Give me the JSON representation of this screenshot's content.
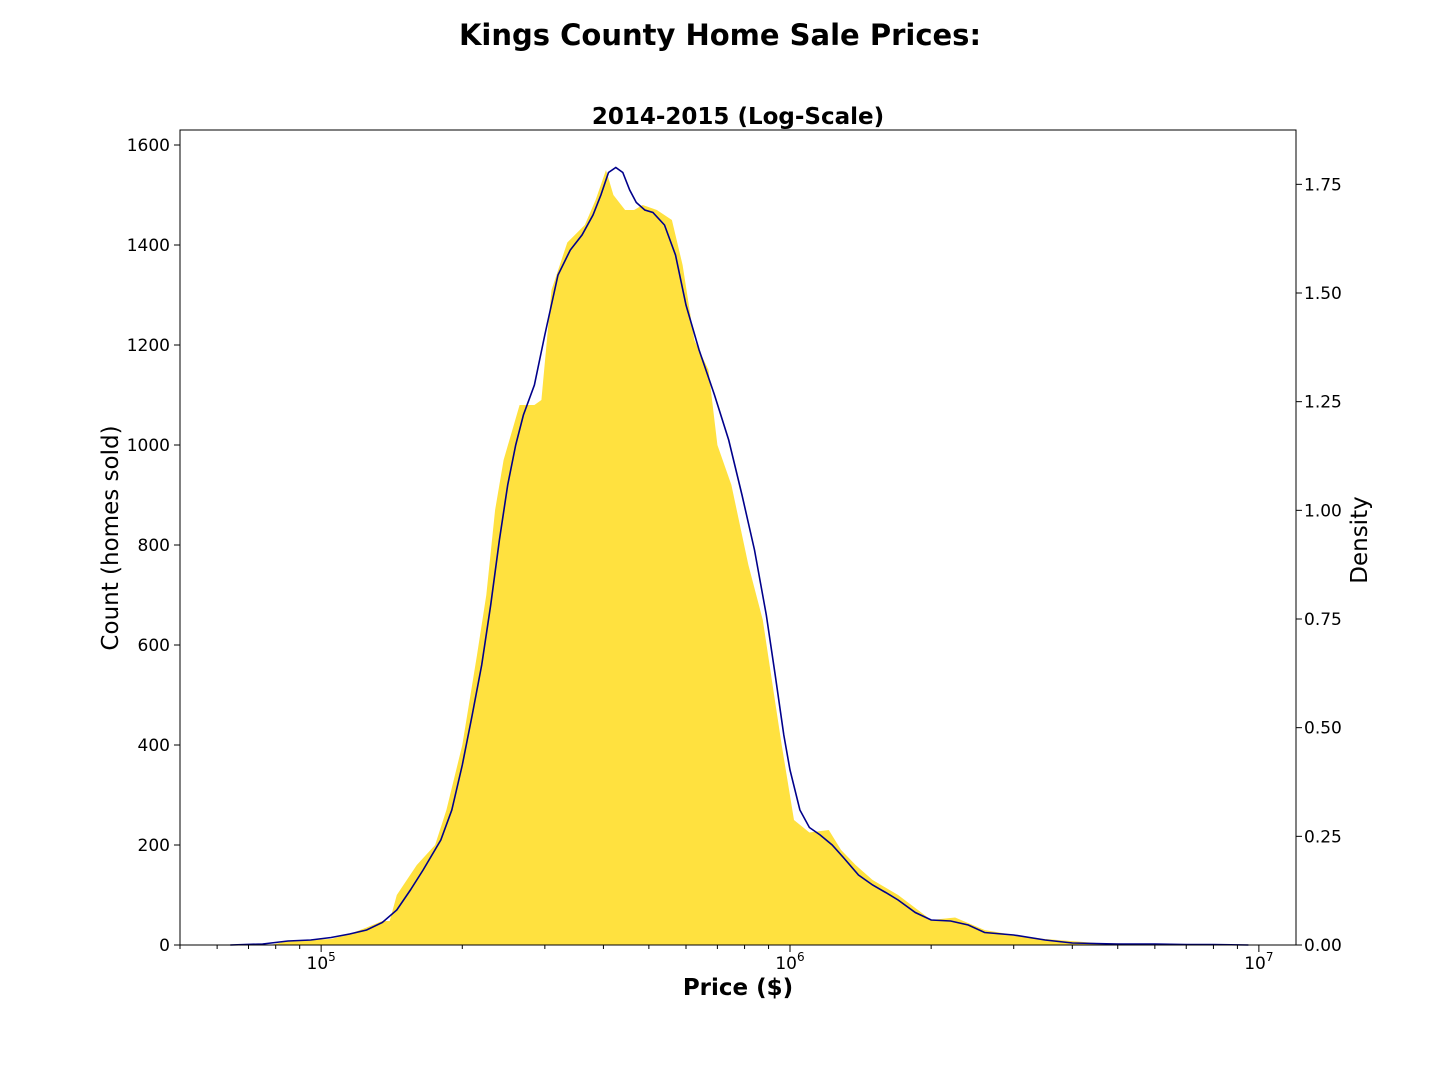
{
  "chart_data": {
    "type": "area",
    "suptitle": "Kings County Home Sale Prices:",
    "title": "2014-2015 (Log-Scale)",
    "xlabel": "Price ($)",
    "ylabel": "Count (homes sold)",
    "ylabel_right": "Density",
    "xscale": "log",
    "xlim": [
      50000,
      12000000
    ],
    "ylim": [
      0,
      1630
    ],
    "ylim_right": [
      0,
      1.875
    ],
    "x_ticks": [
      {
        "base": "10",
        "exp": "5",
        "value": 100000
      },
      {
        "base": "10",
        "exp": "6",
        "value": 1000000
      },
      {
        "base": "10",
        "exp": "7",
        "value": 10000000
      }
    ],
    "y_ticks": [
      0,
      200,
      400,
      600,
      800,
      1000,
      1200,
      1400,
      1600
    ],
    "y_ticks_right": [
      "0.00",
      "0.25",
      "0.50",
      "0.75",
      "1.00",
      "1.25",
      "1.50",
      "1.75"
    ],
    "y_ticks_right_values": [
      0,
      0.25,
      0.5,
      0.75,
      1.0,
      1.25,
      1.5,
      1.75
    ],
    "grid": false,
    "series": [
      {
        "kind": "histogram-area",
        "color": "#ffe13f",
        "points": [
          [
            78000,
            0
          ],
          [
            85000,
            8
          ],
          [
            95000,
            10
          ],
          [
            105000,
            12
          ],
          [
            115000,
            22
          ],
          [
            125000,
            35
          ],
          [
            135000,
            48
          ],
          [
            140000,
            48
          ],
          [
            145000,
            100
          ],
          [
            160000,
            160
          ],
          [
            175000,
            200
          ],
          [
            185000,
            270
          ],
          [
            200000,
            400
          ],
          [
            215000,
            580
          ],
          [
            225000,
            700
          ],
          [
            235000,
            870
          ],
          [
            245000,
            970
          ],
          [
            265000,
            1080
          ],
          [
            285000,
            1080
          ],
          [
            295000,
            1090
          ],
          [
            310000,
            1310
          ],
          [
            335000,
            1405
          ],
          [
            365000,
            1440
          ],
          [
            385000,
            1490
          ],
          [
            405000,
            1550
          ],
          [
            420000,
            1500
          ],
          [
            445000,
            1470
          ],
          [
            465000,
            1470
          ],
          [
            485000,
            1480
          ],
          [
            520000,
            1470
          ],
          [
            560000,
            1450
          ],
          [
            590000,
            1360
          ],
          [
            625000,
            1210
          ],
          [
            670000,
            1150
          ],
          [
            700000,
            1000
          ],
          [
            750000,
            920
          ],
          [
            815000,
            760
          ],
          [
            875000,
            650
          ],
          [
            925000,
            500
          ],
          [
            960000,
            400
          ],
          [
            1020000,
            250
          ],
          [
            1100000,
            225
          ],
          [
            1210000,
            230
          ],
          [
            1285000,
            190
          ],
          [
            1380000,
            160
          ],
          [
            1500000,
            130
          ],
          [
            1700000,
            100
          ],
          [
            2000000,
            50
          ],
          [
            2250000,
            55
          ],
          [
            2600000,
            30
          ],
          [
            3000000,
            20
          ],
          [
            3500000,
            12
          ],
          [
            4500000,
            4
          ],
          [
            6000000,
            2
          ],
          [
            8000000,
            1
          ],
          [
            9500000,
            0
          ]
        ]
      },
      {
        "kind": "kde-line",
        "color": "#00008b",
        "points": [
          [
            64000,
            0
          ],
          [
            75000,
            2
          ],
          [
            85000,
            8
          ],
          [
            95000,
            10
          ],
          [
            105000,
            15
          ],
          [
            115000,
            22
          ],
          [
            125000,
            30
          ],
          [
            135000,
            45
          ],
          [
            145000,
            70
          ],
          [
            155000,
            110
          ],
          [
            165000,
            150
          ],
          [
            180000,
            210
          ],
          [
            190000,
            270
          ],
          [
            200000,
            360
          ],
          [
            210000,
            460
          ],
          [
            220000,
            560
          ],
          [
            230000,
            680
          ],
          [
            240000,
            810
          ],
          [
            250000,
            920
          ],
          [
            260000,
            1000
          ],
          [
            270000,
            1060
          ],
          [
            285000,
            1120
          ],
          [
            300000,
            1220
          ],
          [
            320000,
            1340
          ],
          [
            340000,
            1390
          ],
          [
            360000,
            1420
          ],
          [
            380000,
            1460
          ],
          [
            395000,
            1500
          ],
          [
            410000,
            1545
          ],
          [
            425000,
            1555
          ],
          [
            440000,
            1545
          ],
          [
            455000,
            1510
          ],
          [
            470000,
            1485
          ],
          [
            490000,
            1470
          ],
          [
            510000,
            1465
          ],
          [
            540000,
            1440
          ],
          [
            570000,
            1380
          ],
          [
            600000,
            1280
          ],
          [
            640000,
            1190
          ],
          [
            690000,
            1100
          ],
          [
            740000,
            1010
          ],
          [
            790000,
            900
          ],
          [
            840000,
            790
          ],
          [
            890000,
            660
          ],
          [
            930000,
            540
          ],
          [
            970000,
            420
          ],
          [
            1000000,
            350
          ],
          [
            1050000,
            270
          ],
          [
            1100000,
            235
          ],
          [
            1160000,
            220
          ],
          [
            1230000,
            200
          ],
          [
            1300000,
            175
          ],
          [
            1400000,
            140
          ],
          [
            1500000,
            120
          ],
          [
            1600000,
            105
          ],
          [
            1700000,
            90
          ],
          [
            1850000,
            65
          ],
          [
            2000000,
            50
          ],
          [
            2200000,
            48
          ],
          [
            2400000,
            40
          ],
          [
            2600000,
            25
          ],
          [
            3000000,
            20
          ],
          [
            3500000,
            10
          ],
          [
            4000000,
            4
          ],
          [
            5000000,
            2
          ],
          [
            6000000,
            2
          ],
          [
            7000000,
            1
          ],
          [
            8000000,
            1
          ],
          [
            9500000,
            0
          ]
        ]
      }
    ]
  }
}
